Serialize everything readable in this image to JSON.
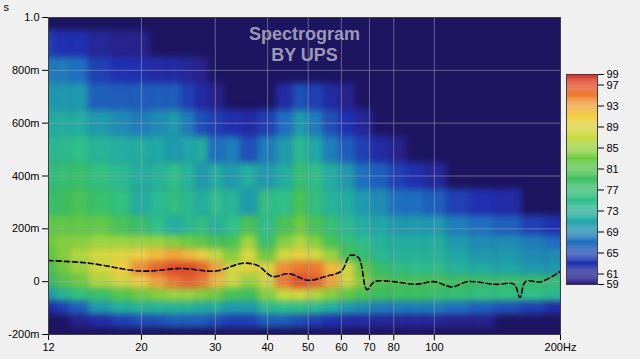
{
  "chart_data": {
    "type": "heatmap",
    "title": "Spectrogram",
    "subtitle": "BY UPS",
    "y_label": "s",
    "log": "x",
    "grid": true,
    "xlim": [
      12,
      200
    ],
    "xticks": [
      12,
      20,
      30,
      40,
      50,
      60,
      70,
      80,
      100,
      {
        "value": 200,
        "label": "200Hz"
      }
    ],
    "ylim": [
      -0.2,
      1.0
    ],
    "yticks": [
      {
        "value": -0.2,
        "label": "-200m"
      },
      0,
      {
        "value": 0.2,
        "label": "200m"
      },
      {
        "value": 0.4,
        "label": "400m"
      },
      {
        "value": 0.6,
        "label": "600m"
      },
      {
        "value": 0.8,
        "label": "800m"
      },
      {
        "value": 1.0,
        "label": "1.0"
      }
    ],
    "colorbar": {
      "range": [
        59,
        99
      ],
      "ticks": [
        59,
        61,
        65,
        69,
        73,
        77,
        81,
        85,
        89,
        93,
        97,
        99
      ]
    },
    "x": [
      12,
      13,
      14,
      16,
      18,
      20,
      22,
      24,
      26,
      28,
      30,
      33,
      36,
      40,
      44,
      48,
      52,
      57,
      62,
      68,
      75,
      82,
      90,
      100,
      115,
      130,
      150,
      175,
      195
    ],
    "y": [
      -0.15,
      -0.1,
      -0.05,
      0,
      0.05,
      0.1,
      0.15,
      0.2,
      0.3,
      0.4,
      0.5,
      0.6,
      0.7,
      0.8,
      0.9
    ],
    "values": [
      [
        null,
        null,
        60,
        62,
        64,
        65,
        65,
        66,
        66,
        66,
        65,
        64,
        64,
        66,
        66,
        65,
        64,
        63,
        62,
        62,
        61,
        61,
        61,
        61,
        60,
        60,
        null,
        null,
        null
      ],
      [
        62,
        64,
        66,
        70,
        72,
        73,
        73,
        73,
        73,
        72,
        72,
        70,
        70,
        74,
        75,
        75,
        74,
        72,
        70,
        69,
        68,
        68,
        68,
        68,
        67,
        66,
        65,
        64,
        62
      ],
      [
        70,
        73,
        76,
        78,
        81,
        83,
        84,
        85,
        85,
        84,
        83,
        80,
        79,
        84,
        87,
        88,
        86,
        84,
        82,
        80,
        79,
        79,
        79,
        78,
        77,
        76,
        76,
        75,
        74
      ],
      [
        78,
        81,
        83,
        86,
        88,
        91,
        93,
        95,
        96,
        95,
        92,
        88,
        85,
        88,
        95,
        97,
        96,
        93,
        88,
        84,
        81,
        80,
        80,
        80,
        79,
        78,
        78,
        78,
        77
      ],
      [
        80,
        83,
        85,
        88,
        91,
        94,
        96,
        97,
        97,
        96,
        93,
        88,
        89,
        89,
        94,
        95,
        95,
        92,
        88,
        82,
        78,
        76,
        75,
        75,
        73,
        72,
        71,
        70,
        70
      ],
      [
        82,
        84,
        86,
        88,
        89,
        91,
        92,
        93,
        92,
        90,
        87,
        84,
        88,
        83,
        88,
        90,
        88,
        85,
        80,
        77,
        74,
        73,
        73,
        73,
        71,
        70,
        70,
        69,
        69
      ],
      [
        83,
        84,
        84,
        85,
        85,
        85,
        85,
        84,
        83,
        82,
        80,
        80,
        85,
        78,
        84,
        86,
        84,
        80,
        77,
        75,
        73,
        72,
        72,
        72,
        70,
        69,
        69,
        68,
        67
      ],
      [
        82,
        82,
        82,
        82,
        80,
        78,
        75,
        72,
        74,
        76,
        73,
        75,
        80,
        75,
        80,
        83,
        80,
        77,
        74,
        72,
        71,
        70,
        70,
        70,
        68,
        67,
        66,
        64,
        63
      ],
      [
        78,
        79,
        80,
        78,
        76,
        72,
        74,
        76,
        74,
        72,
        75,
        73,
        70,
        76,
        75,
        80,
        76,
        73,
        72,
        70,
        69,
        67,
        67,
        66,
        64,
        63,
        62,
        null,
        null
      ],
      [
        76,
        77,
        78,
        76,
        74,
        72,
        73,
        75,
        73,
        70,
        72,
        70,
        72,
        70,
        72,
        77,
        75,
        72,
        70,
        67,
        66,
        64,
        63,
        61,
        null,
        null,
        null,
        null,
        null
      ],
      [
        74,
        74,
        75,
        73,
        72,
        72,
        71,
        70,
        71,
        72,
        67,
        68,
        65,
        68,
        70,
        74,
        71,
        68,
        66,
        64,
        62,
        60,
        null,
        null,
        null,
        null,
        null,
        null,
        null
      ],
      [
        72,
        72,
        72,
        70,
        69,
        68,
        69,
        70,
        68,
        65,
        64,
        63,
        62,
        64,
        67,
        70,
        68,
        65,
        63,
        61,
        null,
        null,
        null,
        null,
        null,
        null,
        null,
        null,
        null
      ],
      [
        70,
        70,
        70,
        66,
        66,
        66,
        66,
        66,
        64,
        62,
        60,
        null,
        null,
        null,
        62,
        65,
        64,
        62,
        60,
        null,
        null,
        null,
        null,
        null,
        null,
        null,
        null,
        null,
        null
      ],
      [
        68,
        68,
        67,
        64,
        63,
        63,
        62,
        62,
        61,
        60,
        null,
        null,
        null,
        null,
        null,
        null,
        null,
        null,
        null,
        null,
        null,
        null,
        null,
        null,
        null,
        null,
        null,
        null,
        null
      ],
      [
        64,
        63,
        63,
        61,
        60,
        60,
        null,
        null,
        null,
        null,
        null,
        null,
        null,
        null,
        null,
        null,
        null,
        null,
        null,
        null,
        null,
        null,
        null,
        null,
        null,
        null,
        null,
        null,
        null
      ]
    ],
    "series": [
      {
        "type": "line",
        "line_style": "dashed",
        "color": "#000000",
        "x": [
          12,
          15,
          20,
          25,
          30,
          35,
          38,
          41,
          45,
          50,
          55,
          60,
          63,
          66,
          69,
          72,
          80,
          90,
          100,
          110,
          120,
          140,
          155,
          160,
          165,
          180,
          200
        ],
        "values": [
          0.08,
          0.07,
          0.04,
          0.05,
          0.04,
          0.07,
          0.06,
          0.02,
          0.03,
          0.005,
          0.02,
          0.04,
          0.1,
          0.09,
          -0.03,
          0,
          0,
          -0.01,
          0,
          -0.02,
          0,
          -0.01,
          -0.01,
          -0.06,
          0,
          0,
          0.04
        ]
      }
    ]
  }
}
